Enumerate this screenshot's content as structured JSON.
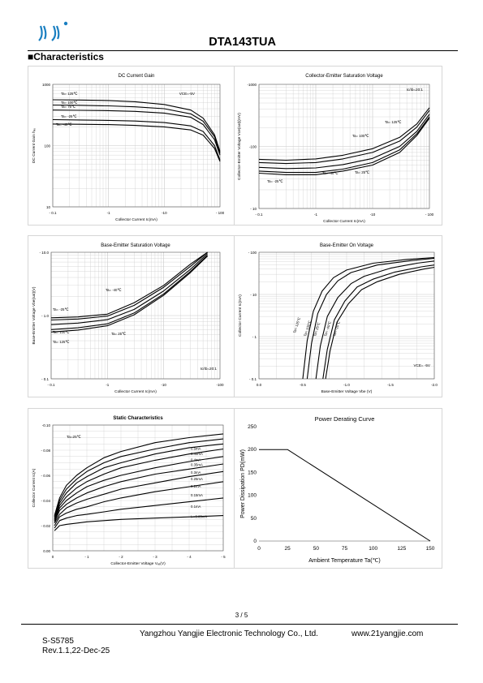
{
  "header": {
    "part_number": "DTA143TUA",
    "section_title": "■Characteristics"
  },
  "footer": {
    "page": "3 / 5",
    "doc_id": "S-S5785",
    "revision": "Rev.1.1,22-Dec-25",
    "company": "Yangzhou Yangjie Electronic Technology Co., Ltd.",
    "website": "www.21yangjie.com"
  },
  "colors": {
    "curve": "#000000",
    "grid": "#c8c8c8",
    "panel_border": "#d6d6d6",
    "logo": "#1a7fc1"
  },
  "chart_data": [
    {
      "id": "dc-gain",
      "type": "line",
      "title": "DC Current Gain",
      "xlabel": "Collector Current   Ic(mA)",
      "ylabel": "DC Current Gain   hₓₑ",
      "xscale": "log",
      "yscale": "log",
      "xlim": [
        0.1,
        100
      ],
      "ylim": [
        10,
        1000
      ],
      "xticks": [
        "- 0.1",
        "-1",
        "-10",
        "- 100"
      ],
      "yticks": [
        "1000",
        "100",
        "10"
      ],
      "annotations": [
        "VCE=-5V"
      ],
      "series": [
        {
          "name": "Ta= 125℃",
          "x": [
            0.1,
            0.3,
            1,
            3,
            10,
            30,
            50,
            80,
            100
          ],
          "y": [
            560,
            555,
            545,
            520,
            470,
            380,
            280,
            150,
            80
          ]
        },
        {
          "name": "Ta= 100℃",
          "x": [
            0.1,
            0.3,
            1,
            3,
            10,
            30,
            50,
            80,
            100
          ],
          "y": [
            460,
            455,
            445,
            430,
            400,
            330,
            250,
            140,
            75
          ]
        },
        {
          "name": "Ta= 75℃",
          "x": [
            0.1,
            0.3,
            1,
            3,
            10,
            30,
            50,
            80,
            100
          ],
          "y": [
            380,
            377,
            372,
            362,
            340,
            290,
            220,
            125,
            70
          ]
        },
        {
          "name": "Ta= -25℃",
          "x": [
            0.1,
            0.3,
            1,
            3,
            10,
            30,
            50,
            80,
            100
          ],
          "y": [
            265,
            262,
            258,
            252,
            238,
            210,
            170,
            100,
            58
          ]
        },
        {
          "name": "Ta= -40℃",
          "x": [
            0.1,
            0.3,
            1,
            3,
            10,
            30,
            50,
            80,
            100
          ],
          "y": [
            225,
            223,
            220,
            214,
            202,
            180,
            148,
            90,
            55
          ]
        }
      ]
    },
    {
      "id": "vce-sat",
      "type": "line",
      "title": "Collector-Emitter Saturation Voltage",
      "xlabel": "Collector Current   Ic(mA)",
      "ylabel": "Collector-Emitter Voltage   Vce(sat)(mV)",
      "xscale": "log",
      "yscale": "log",
      "xlim": [
        0.1,
        100
      ],
      "ylim": [
        10,
        1000
      ],
      "xticks": [
        "- 0.1",
        "-1",
        "-10",
        "- 100"
      ],
      "yticks": [
        "-1000",
        "-100",
        "- 10"
      ],
      "annotations": [
        "Ic/Ib=20:1"
      ],
      "series": [
        {
          "name": "Ta= 125℃",
          "x": [
            0.1,
            0.3,
            1,
            3,
            10,
            30,
            60,
            100
          ],
          "y": [
            62,
            60,
            63,
            72,
            92,
            140,
            230,
            420
          ]
        },
        {
          "name": "Ta= 100℃",
          "x": [
            0.1,
            0.3,
            1,
            3,
            10,
            30,
            60,
            100
          ],
          "y": [
            55,
            53,
            55,
            63,
            80,
            122,
            205,
            380
          ]
        },
        {
          "name": "Ta= 25℃",
          "x": [
            0.1,
            0.3,
            1,
            3,
            10,
            30,
            60,
            100
          ],
          "y": [
            46,
            44,
            45,
            51,
            64,
            100,
            175,
            330
          ]
        },
        {
          "name": "Ta= -40℃",
          "x": [
            0.1,
            0.3,
            1,
            3,
            10,
            30,
            60,
            100
          ],
          "y": [
            40,
            38,
            38,
            43,
            55,
            88,
            160,
            300
          ]
        },
        {
          "name": "Ta= -25℃",
          "x": [
            0.1,
            0.3,
            1,
            3,
            10,
            30,
            60,
            100
          ],
          "y": [
            37,
            35,
            35,
            40,
            50,
            80,
            150,
            285
          ]
        }
      ]
    },
    {
      "id": "vbe-sat",
      "type": "line",
      "title": "Base-Emitter Saturation Voltage",
      "xlabel": "Collector Current   Ic(mA)",
      "ylabel": "Base-Emitter Voltage   Vbe(sat)(V)",
      "xscale": "log",
      "yscale": "log",
      "xlim": [
        0.1,
        100
      ],
      "ylim": [
        0.1,
        10
      ],
      "xticks": [
        "- 0.1",
        "-1",
        "-10",
        "-100"
      ],
      "yticks": [
        "- 10.0",
        "- 1.0",
        "- 0.1"
      ],
      "annotations": [
        "Ic/Ib=20:1"
      ],
      "series": [
        {
          "name": "Ta= -40℃",
          "x": [
            0.1,
            0.3,
            1,
            3,
            10,
            30,
            60
          ],
          "y": [
            0.92,
            0.95,
            1.05,
            1.6,
            3.0,
            6.5,
            11
          ]
        },
        {
          "name": "Ta= -25℃",
          "x": [
            0.1,
            0.3,
            1,
            3,
            10,
            30,
            60
          ],
          "y": [
            0.85,
            0.88,
            0.98,
            1.45,
            2.8,
            6.0,
            10.3
          ]
        },
        {
          "name": "Ta= 25℃",
          "x": [
            0.1,
            0.3,
            1,
            3,
            10,
            30,
            60
          ],
          "y": [
            0.72,
            0.76,
            0.86,
            1.25,
            2.45,
            5.4,
            9.5
          ]
        },
        {
          "name": "Ta= 100℃",
          "x": [
            0.1,
            0.3,
            1,
            3,
            10,
            30,
            60
          ],
          "y": [
            0.6,
            0.64,
            0.74,
            1.1,
            2.2,
            5.0,
            9.0
          ]
        },
        {
          "name": "Ta= 125℃",
          "x": [
            0.1,
            0.3,
            1,
            3,
            10,
            30,
            60
          ],
          "y": [
            0.55,
            0.59,
            0.69,
            1.03,
            2.1,
            4.8,
            8.7
          ]
        }
      ]
    },
    {
      "id": "vbe-on",
      "type": "line",
      "title": "Base-Emitter On Voltage",
      "xlabel": "Base-Emitter Voltage   Vbe  (V)",
      "ylabel": "Collector Current   Ic(mA)",
      "xscale": "linear",
      "yscale": "log",
      "xlim": [
        0,
        2.0
      ],
      "ylim": [
        0.1,
        100
      ],
      "xticks": [
        "0.0",
        "-0.5",
        "-1.0",
        "-1.5",
        "-2.0"
      ],
      "yticks": [
        "- 100",
        "- 10",
        "- 1",
        "- 0.1"
      ],
      "annotations": [
        "VCE= -5V"
      ],
      "series": [
        {
          "name": "Ta= 125℃",
          "x": [
            0.5,
            0.55,
            0.62,
            0.72,
            0.85,
            1.0,
            1.3,
            1.7,
            2.0
          ],
          "y": [
            0.1,
            0.8,
            4.0,
            12,
            25,
            38,
            55,
            68,
            75
          ]
        },
        {
          "name": "Ta= 100℃",
          "x": [
            0.55,
            0.6,
            0.67,
            0.77,
            0.9,
            1.05,
            1.35,
            1.75,
            2.0
          ],
          "y": [
            0.1,
            0.7,
            3.5,
            10,
            21,
            33,
            50,
            64,
            72
          ]
        },
        {
          "name": "Ta= 25℃",
          "x": [
            0.65,
            0.7,
            0.78,
            0.9,
            1.05,
            1.2,
            1.5,
            1.8,
            2.0
          ],
          "y": [
            0.1,
            0.6,
            3.0,
            8.5,
            18,
            27,
            42,
            55,
            62
          ]
        },
        {
          "name": "Ta= -40℃",
          "x": [
            0.73,
            0.78,
            0.86,
            0.98,
            1.12,
            1.3,
            1.55,
            1.85,
            2.0
          ],
          "y": [
            0.1,
            0.5,
            2.5,
            7.0,
            15,
            23,
            34,
            45,
            50
          ]
        },
        {
          "name": "Ta= -25℃",
          "x": [
            0.76,
            0.81,
            0.89,
            1.02,
            1.17,
            1.35,
            1.6,
            1.88,
            2.0
          ],
          "y": [
            0.1,
            0.45,
            2.2,
            6.0,
            13,
            20,
            30,
            40,
            44
          ]
        }
      ]
    },
    {
      "id": "static",
      "type": "line",
      "title": "Static Characteristics",
      "xlabel": "Collector-Emitter Voltage   Vₓₑ(V)",
      "ylabel": "Collector Current   Ic(A)",
      "xlim": [
        0,
        5
      ],
      "ylim": [
        0,
        0.1
      ],
      "xticks": [
        "0",
        "- 1",
        "- 2",
        "- 3",
        "- 4",
        "- 5"
      ],
      "yticks": [
        "-0.10",
        "- 0.08",
        "- 0.06",
        "- 0.04",
        "- 0.02",
        "0.00"
      ],
      "annotations": [
        "Ta=25℃"
      ],
      "series": [
        {
          "name": "0.5mA",
          "x": [
            0.05,
            0.2,
            0.4,
            0.7,
            1.0,
            1.5,
            2.0,
            3.0,
            4.0,
            5.0
          ],
          "y": [
            0.028,
            0.042,
            0.052,
            0.06,
            0.066,
            0.074,
            0.079,
            0.086,
            0.09,
            0.093
          ]
        },
        {
          "name": "0.45mA",
          "x": [
            0.05,
            0.2,
            0.4,
            0.7,
            1.0,
            1.5,
            2.0,
            3.0,
            4.0,
            5.0
          ],
          "y": [
            0.027,
            0.04,
            0.049,
            0.057,
            0.063,
            0.07,
            0.075,
            0.081,
            0.086,
            0.089
          ]
        },
        {
          "name": "0.4mA",
          "x": [
            0.05,
            0.2,
            0.4,
            0.7,
            1.0,
            1.5,
            2.0,
            3.0,
            4.0,
            5.0
          ],
          "y": [
            0.026,
            0.038,
            0.046,
            0.054,
            0.059,
            0.066,
            0.07,
            0.077,
            0.082,
            0.085
          ]
        },
        {
          "name": "0.35mA",
          "x": [
            0.05,
            0.2,
            0.4,
            0.7,
            1.0,
            1.5,
            2.0,
            3.0,
            4.0,
            5.0
          ],
          "y": [
            0.025,
            0.036,
            0.043,
            0.05,
            0.055,
            0.061,
            0.066,
            0.072,
            0.077,
            0.081
          ]
        },
        {
          "name": "0.3mA",
          "x": [
            0.05,
            0.2,
            0.4,
            0.7,
            1.0,
            1.5,
            2.0,
            3.0,
            4.0,
            5.0
          ],
          "y": [
            0.024,
            0.034,
            0.04,
            0.046,
            0.051,
            0.056,
            0.06,
            0.066,
            0.071,
            0.075
          ]
        },
        {
          "name": "0.25mA",
          "x": [
            0.05,
            0.2,
            0.4,
            0.7,
            1.0,
            1.5,
            2.0,
            3.0,
            4.0,
            5.0
          ],
          "y": [
            0.023,
            0.032,
            0.037,
            0.042,
            0.046,
            0.051,
            0.055,
            0.061,
            0.065,
            0.069
          ]
        },
        {
          "name": "0.2mA",
          "x": [
            0.05,
            0.2,
            0.4,
            0.7,
            1.0,
            1.5,
            2.0,
            3.0,
            4.0,
            5.0
          ],
          "y": [
            0.022,
            0.029,
            0.034,
            0.038,
            0.041,
            0.045,
            0.049,
            0.054,
            0.059,
            0.063
          ]
        },
        {
          "name": "0.15mA",
          "x": [
            0.05,
            0.2,
            0.4,
            0.7,
            1.0,
            1.5,
            2.0,
            3.0,
            4.0,
            5.0
          ],
          "y": [
            0.02,
            0.027,
            0.03,
            0.033,
            0.035,
            0.039,
            0.042,
            0.047,
            0.051,
            0.055
          ]
        },
        {
          "name": "0.1mA",
          "x": [
            0.05,
            0.2,
            0.4,
            0.7,
            1.0,
            1.5,
            2.0,
            3.0,
            4.0,
            5.0
          ],
          "y": [
            0.018,
            0.024,
            0.026,
            0.028,
            0.029,
            0.031,
            0.033,
            0.036,
            0.039,
            0.042
          ]
        },
        {
          "name": "Iₕ=0.05mA",
          "x": [
            0.05,
            0.2,
            0.4,
            0.7,
            1.0,
            1.5,
            2.0,
            3.0,
            4.0,
            5.0
          ],
          "y": [
            0.016,
            0.02,
            0.021,
            0.022,
            0.023,
            0.024,
            0.025,
            0.026,
            0.027,
            0.028
          ]
        }
      ]
    },
    {
      "id": "power",
      "type": "line",
      "title": "Power Derating Curve",
      "xlabel": "Ambient Temperature Ta(℃)",
      "ylabel": "Power Dissipation  PD(mW)",
      "xlim": [
        0,
        150
      ],
      "ylim": [
        0,
        250
      ],
      "xticks": [
        "0",
        "25",
        "50",
        "75",
        "100",
        "125",
        "150"
      ],
      "yticks": [
        "250",
        "200",
        "150",
        "100",
        "50",
        "0"
      ],
      "series": [
        {
          "x": [
            0,
            25,
            150
          ],
          "y": [
            200,
            200,
            0
          ]
        }
      ]
    }
  ]
}
